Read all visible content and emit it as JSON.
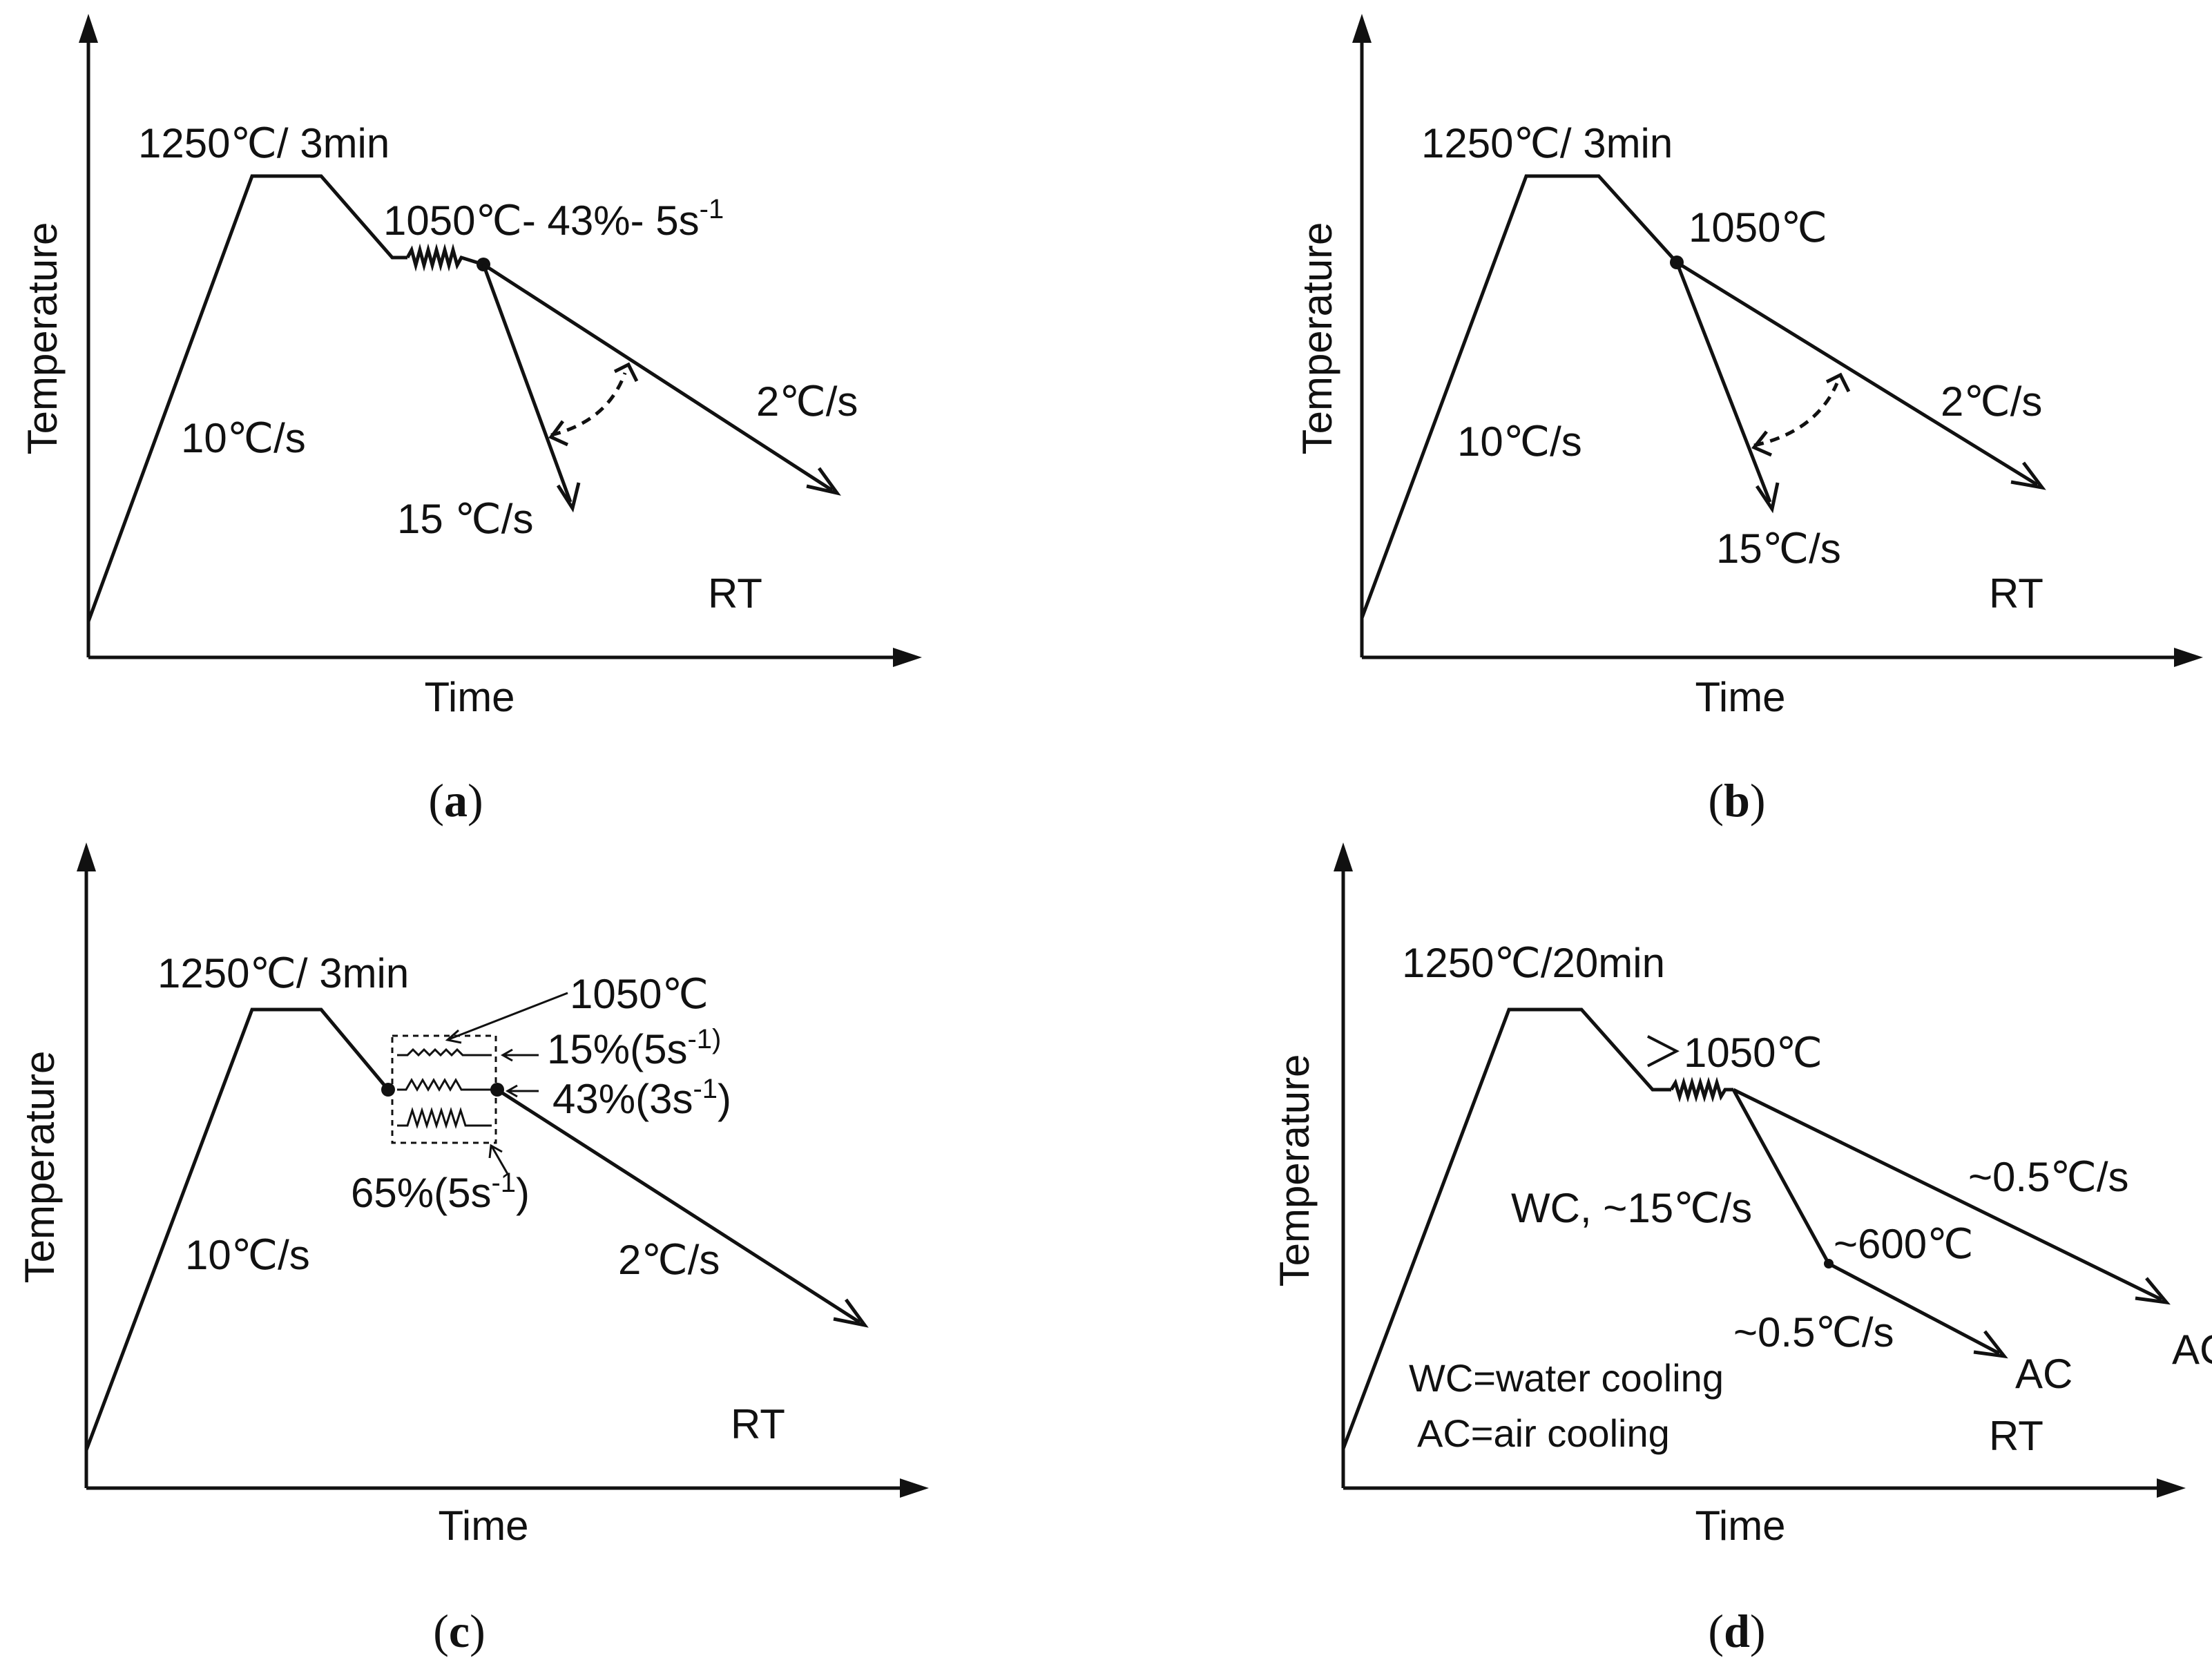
{
  "a": {
    "caption_letter": "a",
    "ylabel": "Temperature",
    "xlabel": "Time",
    "hold": "1250℃/ 3min",
    "deform": "1050℃- 43%- 5s",
    "deform_sup": "-1",
    "heating": "10℃/s",
    "fast": "15 ℃/s",
    "slow": "2℃/s",
    "rt": "RT"
  },
  "b": {
    "caption_letter": "b",
    "ylabel": "Temperature",
    "xlabel": "Time",
    "hold": "1250℃/ 3min",
    "point": "1050℃",
    "heating": "10℃/s",
    "fast": "15℃/s",
    "slow": "2℃/s",
    "rt": "RT"
  },
  "c": {
    "caption_letter": "c",
    "ylabel": "Temperature",
    "xlabel": "Time",
    "hold": "1250℃/ 3min",
    "temp": "1050℃",
    "s15_a": "15%(5s",
    "s15_sup": "-1)",
    "s43_a": "43%(3s",
    "s43_sup": "-1",
    "s43_b": ")",
    "s65_a": "65%(5s",
    "s65_sup": "-1",
    "s65_b": ")",
    "heating": "10℃/s",
    "slow": "2℃/s",
    "rt": "RT"
  },
  "d": {
    "caption_letter": "d",
    "ylabel": "Temperature",
    "xlabel": "Time",
    "hold": "1250℃/20min",
    "deform": "＞1050℃",
    "wc_rate": "WC, ~15℃/s",
    "t600": "~600℃",
    "slow1": "~0.5℃/s",
    "slow2": "~0.5℃/s",
    "ac1": "AC",
    "ac2": "AC",
    "wc_def": "WC=water cooling",
    "ac_def": "AC=air cooling",
    "rt": "RT"
  }
}
